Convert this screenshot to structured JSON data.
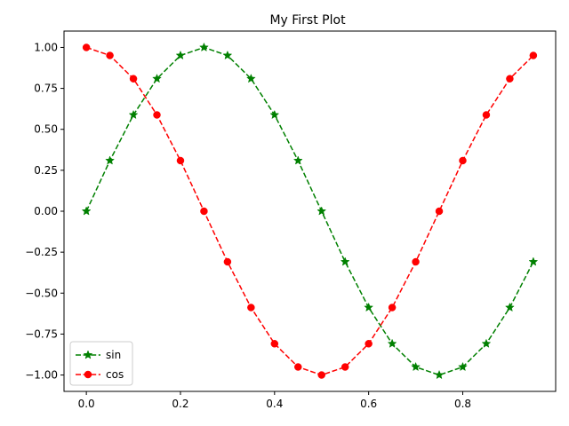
{
  "chart_data": {
    "type": "line",
    "title": "My First Plot",
    "xlabel": "",
    "ylabel": "",
    "xlim": [
      -0.0475,
      0.9975
    ],
    "ylim": [
      -1.1,
      1.1
    ],
    "x_ticks": [
      0.0,
      0.2,
      0.4,
      0.6,
      0.8
    ],
    "x_tick_labels": [
      "0.0",
      "0.2",
      "0.4",
      "0.6",
      "0.8"
    ],
    "y_ticks": [
      1.0,
      0.75,
      0.5,
      0.25,
      0.0,
      -0.25,
      -0.5,
      -0.75,
      -1.0
    ],
    "y_tick_labels": [
      "1.00",
      "0.75",
      "0.50",
      "0.25",
      "0.00",
      "−0.25",
      "−0.50",
      "−0.75",
      "−1.00"
    ],
    "grid": false,
    "legend_position": "lower-left",
    "x": [
      0.0,
      0.05,
      0.1,
      0.15,
      0.2,
      0.25,
      0.3,
      0.35,
      0.4,
      0.45,
      0.5,
      0.55,
      0.6,
      0.65,
      0.7,
      0.75,
      0.8,
      0.85,
      0.9,
      0.95
    ],
    "series": [
      {
        "name": "sin",
        "color": "#008000",
        "marker": "star",
        "linestyle": "dashed",
        "values": [
          0.0,
          0.309,
          0.588,
          0.809,
          0.951,
          1.0,
          0.951,
          0.809,
          0.588,
          0.309,
          0.0,
          -0.309,
          -0.588,
          -0.809,
          -0.951,
          -1.0,
          -0.951,
          -0.809,
          -0.588,
          -0.309
        ]
      },
      {
        "name": "cos",
        "color": "#ff0000",
        "marker": "circle",
        "linestyle": "dashed",
        "values": [
          1.0,
          0.951,
          0.809,
          0.588,
          0.309,
          0.0,
          -0.309,
          -0.588,
          -0.809,
          -0.951,
          -1.0,
          -0.951,
          -0.809,
          -0.588,
          -0.309,
          0.0,
          0.309,
          0.588,
          0.809,
          0.951
        ]
      }
    ]
  }
}
